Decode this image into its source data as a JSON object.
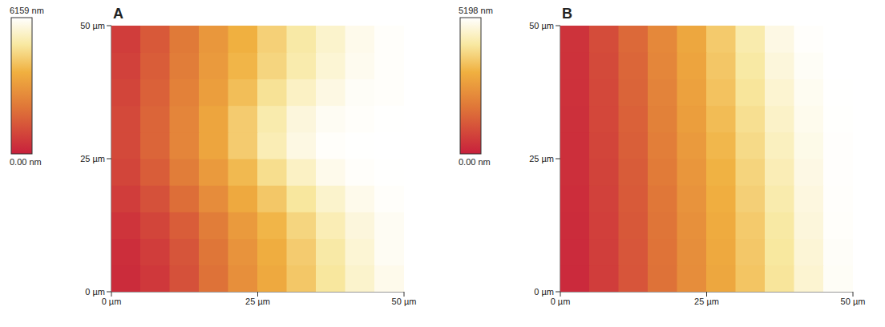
{
  "chart_data": [
    {
      "type": "heatmap",
      "title": "A",
      "x": [
        2.5,
        7.5,
        12.5,
        17.5,
        22.5,
        27.5,
        32.5,
        37.5,
        42.5,
        47.5
      ],
      "y": [
        2.5,
        7.5,
        12.5,
        17.5,
        22.5,
        27.5,
        32.5,
        37.5,
        42.5,
        47.5
      ],
      "cells": [
        [
          300,
          600,
          1200,
          2000,
          2800,
          3500,
          4200,
          4900,
          5500,
          5900
        ],
        [
          350,
          700,
          1300,
          2100,
          2900,
          3600,
          4300,
          5000,
          5600,
          6000
        ],
        [
          500,
          900,
          1500,
          2300,
          3100,
          3800,
          4500,
          5200,
          5700,
          6000
        ],
        [
          700,
          1200,
          1900,
          2700,
          3500,
          4200,
          4900,
          5500,
          5900,
          6100
        ],
        [
          900,
          1500,
          2300,
          3100,
          3900,
          4700,
          5400,
          5900,
          6100,
          6150
        ],
        [
          1000,
          1700,
          2500,
          3400,
          4300,
          5200,
          5800,
          6100,
          6150,
          6159
        ],
        [
          1000,
          1700,
          2500,
          3400,
          4300,
          5100,
          5700,
          6000,
          6100,
          6150
        ],
        [
          900,
          1600,
          2400,
          3200,
          4000,
          4800,
          5400,
          5800,
          6050,
          6100
        ],
        [
          800,
          1500,
          2300,
          3100,
          3800,
          4500,
          5100,
          5600,
          5950,
          6100
        ],
        [
          700,
          1400,
          2200,
          3000,
          3700,
          4400,
          5000,
          5500,
          5900,
          6100
        ]
      ],
      "xlim": [
        0,
        50
      ],
      "ylim": [
        0,
        50
      ],
      "xticks": [
        {
          "value": 0,
          "label": "0 µm"
        },
        {
          "value": 25,
          "label": "25 µm"
        },
        {
          "value": 50,
          "label": "50 µm"
        }
      ],
      "yticks": [
        {
          "value": 0,
          "label": "0 µm"
        },
        {
          "value": 25,
          "label": "25 µm"
        },
        {
          "value": 50,
          "label": "50 µm"
        }
      ],
      "colorbar_range": [
        0,
        6159
      ],
      "colorbar_ticks": [
        {
          "value": 0,
          "label": "0.00 nm"
        },
        {
          "value": 6159,
          "label": "6159 nm"
        }
      ]
    },
    {
      "type": "heatmap",
      "title": "B",
      "x": [
        2.5,
        7.5,
        12.5,
        17.5,
        22.5,
        27.5,
        32.5,
        37.5,
        42.5,
        47.5
      ],
      "y": [
        2.5,
        7.5,
        12.5,
        17.5,
        22.5,
        27.5,
        32.5,
        37.5,
        42.5,
        47.5
      ],
      "cells": [
        [
          200,
          600,
          1100,
          1700,
          2300,
          2900,
          3500,
          4100,
          4700,
          5100
        ],
        [
          220,
          620,
          1120,
          1720,
          2330,
          2950,
          3550,
          4150,
          4750,
          5120
        ],
        [
          250,
          650,
          1150,
          1750,
          2380,
          3000,
          3600,
          4200,
          4800,
          5140
        ],
        [
          270,
          680,
          1200,
          1800,
          2450,
          3080,
          3700,
          4300,
          4850,
          5150
        ],
        [
          300,
          720,
          1250,
          1880,
          2520,
          3150,
          3780,
          4400,
          4900,
          5160
        ],
        [
          320,
          760,
          1300,
          1950,
          2600,
          3250,
          3900,
          4500,
          4950,
          5170
        ],
        [
          340,
          800,
          1350,
          2020,
          2700,
          3350,
          4000,
          4600,
          5000,
          5180
        ],
        [
          360,
          830,
          1400,
          2080,
          2780,
          3450,
          4100,
          4700,
          5050,
          5190
        ],
        [
          380,
          870,
          1450,
          2150,
          2850,
          3530,
          4200,
          4800,
          5100,
          5195
        ],
        [
          400,
          900,
          1500,
          2200,
          2900,
          3600,
          4300,
          4900,
          5150,
          5198
        ]
      ],
      "xlim": [
        0,
        50
      ],
      "ylim": [
        0,
        50
      ],
      "xticks": [
        {
          "value": 0,
          "label": "0 µm"
        },
        {
          "value": 25,
          "label": "25 µm"
        },
        {
          "value": 50,
          "label": "50 µm"
        }
      ],
      "yticks": [
        {
          "value": 0,
          "label": "0 µm"
        },
        {
          "value": 25,
          "label": "25 µm"
        },
        {
          "value": 50,
          "label": "50 µm"
        }
      ],
      "colorbar_range": [
        0,
        5198
      ],
      "colorbar_ticks": [
        {
          "value": 0,
          "label": "0.00 nm"
        },
        {
          "value": 5198,
          "label": "5198 nm"
        }
      ]
    }
  ]
}
